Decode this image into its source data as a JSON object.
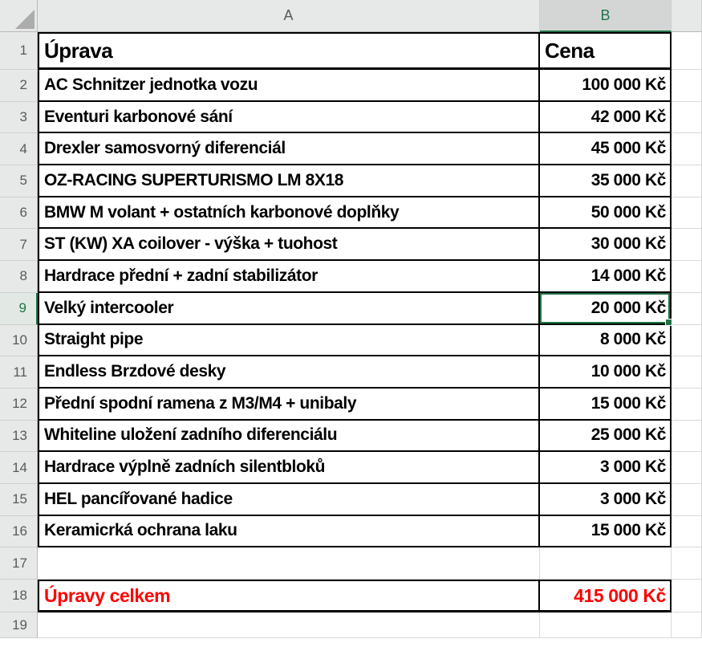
{
  "app": {
    "kind": "spreadsheet"
  },
  "colors": {
    "selection_green": "#217346",
    "total_red": "#fe0101",
    "grid_line": "#d9d9d9",
    "header_bg": "#e7e8e8",
    "header_selected_bg": "#d4d6d6",
    "header_text": "#595959",
    "cell_border": "#000000"
  },
  "columns": [
    {
      "letter": "A",
      "selected": false
    },
    {
      "letter": "B",
      "selected": true
    },
    {
      "letter": "",
      "selected": false
    }
  ],
  "selection": {
    "active_cell": "B9",
    "active_column": "B",
    "active_row": "9",
    "active_value": "20 000 Kč"
  },
  "sheet": {
    "header": {
      "a": "Úprava",
      "b": "Cena"
    },
    "rows": [
      {
        "n": "1",
        "type": "title",
        "a": "Úprava",
        "b": "Cena"
      },
      {
        "n": "2",
        "type": "data",
        "a": "AC Schnitzer jednotka vozu",
        "b": "100 000 Kč"
      },
      {
        "n": "3",
        "type": "data",
        "a": "Eventuri karbonové sání",
        "b": "42 000 Kč"
      },
      {
        "n": "4",
        "type": "data",
        "a": "Drexler samosvorný diferenciál",
        "b": "45 000 Kč"
      },
      {
        "n": "5",
        "type": "data",
        "a": "OZ-RACING SUPERTURISMO LM 8X18",
        "b": "35 000 Kč"
      },
      {
        "n": "6",
        "type": "data",
        "a": "BMW M volant + ostatních karbonové doplňky",
        "b": "50 000 Kč"
      },
      {
        "n": "7",
        "type": "data",
        "a": "ST (KW) XA coilover - výška + tuohost",
        "b": "30 000 Kč"
      },
      {
        "n": "8",
        "type": "data",
        "a": "Hardrace přední + zadní stabilizátor",
        "b": "14 000 Kč"
      },
      {
        "n": "9",
        "type": "data",
        "a": "Velký intercooler",
        "b": "20 000 Kč",
        "selected": true
      },
      {
        "n": "10",
        "type": "data",
        "a": "Straight pipe",
        "b": "8 000 Kč"
      },
      {
        "n": "11",
        "type": "data",
        "a": "Endless Brzdové desky",
        "b": "10 000 Kč"
      },
      {
        "n": "12",
        "type": "data",
        "a": "Přední spodní ramena z M3/M4 + unibaly",
        "b": "15 000 Kč"
      },
      {
        "n": "13",
        "type": "data",
        "a": "Whiteline uložení zadního diferenciálu",
        "b": "25 000 Kč"
      },
      {
        "n": "14",
        "type": "data",
        "a": "Hardrace výplně zadních silentbloků",
        "b": "3 000 Kč"
      },
      {
        "n": "15",
        "type": "data",
        "a": "HEL pancířované hadice",
        "b": "3 000 Kč"
      },
      {
        "n": "16",
        "type": "data",
        "a": "Keramicrká ochrana laku",
        "b": "15 000 Kč"
      },
      {
        "n": "17",
        "type": "blank",
        "a": "",
        "b": ""
      },
      {
        "n": "18",
        "type": "total",
        "a": "Úpravy celkem",
        "b": "415 000 Kč"
      },
      {
        "n": "19",
        "type": "blank",
        "a": "",
        "b": ""
      }
    ]
  }
}
